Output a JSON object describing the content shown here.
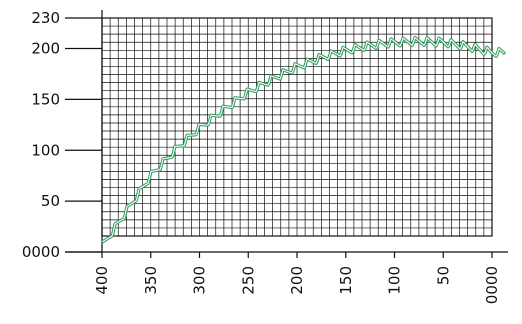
{
  "colors": {
    "line": "#2E9F5F",
    "grid": "#111111",
    "axis": "#111111",
    "background": "#ffffff"
  },
  "chart_data": {
    "type": "line",
    "title": "",
    "xlabel": "",
    "ylabel": "",
    "x_reversed": true,
    "xlim": [
      400,
      0
    ],
    "ylim": [
      0,
      230
    ],
    "grid": true,
    "y_ticks": [
      {
        "value": 0,
        "label": "0000"
      },
      {
        "value": 50,
        "label": "50"
      },
      {
        "value": 100,
        "label": "100"
      },
      {
        "value": 150,
        "label": "150"
      },
      {
        "value": 200,
        "label": "200"
      },
      {
        "value": 230,
        "label": "230"
      }
    ],
    "x_ticks": [
      {
        "value": 400,
        "label": "400"
      },
      {
        "value": 350,
        "label": "350"
      },
      {
        "value": 300,
        "label": "300"
      },
      {
        "value": 250,
        "label": "250"
      },
      {
        "value": 200,
        "label": "200"
      },
      {
        "value": 150,
        "label": "150"
      },
      {
        "value": 100,
        "label": "100"
      },
      {
        "value": 50,
        "label": "50"
      },
      {
        "value": 0,
        "label": "0000"
      }
    ],
    "series": [
      {
        "style": "wavy",
        "x": [
          400,
          375,
          350,
          325,
          300,
          275,
          250,
          225,
          200,
          175,
          150,
          125,
          100,
          75,
          50,
          25,
          0
        ],
        "y": [
          5,
          40,
          75,
          100,
          122,
          140,
          157,
          170,
          182,
          191,
          198,
          203,
          206,
          207,
          206,
          202,
          196
        ]
      }
    ]
  }
}
